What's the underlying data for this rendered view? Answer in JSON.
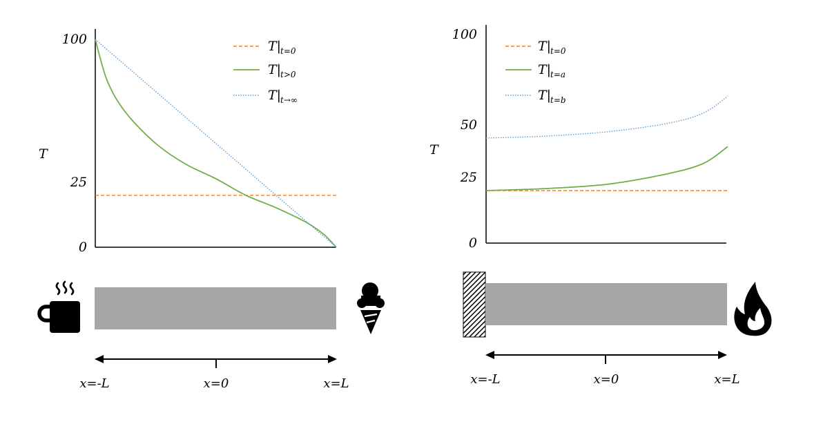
{
  "colors": {
    "initial": "#ED7D31",
    "intermediate": "#70AD47",
    "final": "#5B9BD5",
    "rod": "#A6A6A6",
    "ink": "#000000"
  },
  "left_panel": {
    "y_label": "T",
    "y_ticks": [
      "100",
      "25",
      "0"
    ],
    "legend": [
      {
        "main": "T|",
        "sub": "t=0",
        "style": "dashed",
        "color_key": "initial"
      },
      {
        "main": "T|",
        "sub": "t>0",
        "style": "solid",
        "color_key": "intermediate"
      },
      {
        "main": "T|",
        "sub": "t→∞",
        "style": "dotted",
        "color_key": "final"
      }
    ],
    "left_icon": "hot-coffee-mug-icon",
    "right_icon": "ice-cream-cone-icon",
    "positions": [
      "x=-L",
      "x=0",
      "x=L"
    ]
  },
  "right_panel": {
    "y_label": "T",
    "y_ticks": [
      "100",
      "50",
      "25",
      "0"
    ],
    "legend": [
      {
        "main": "T|",
        "sub": "t=0",
        "style": "dashed",
        "color_key": "initial"
      },
      {
        "main": "T|",
        "sub": "t=a",
        "style": "solid",
        "color_key": "intermediate"
      },
      {
        "main": "T|",
        "sub": "t=b",
        "style": "dotted",
        "color_key": "final"
      }
    ],
    "left_icon": "insulated-wall-icon",
    "right_icon": "fire-icon",
    "positions": [
      "x=-L",
      "x=0",
      "x=L"
    ]
  },
  "chart_data": [
    {
      "type": "line",
      "title": "",
      "xlabel": "",
      "ylabel": "T",
      "x_categories": [
        "x=-L",
        "x=0",
        "x=L"
      ],
      "xlim": [
        -1,
        1
      ],
      "ylim": [
        0,
        100
      ],
      "grid": false,
      "legend_position": "top-right",
      "series": [
        {
          "name": "T|t=0",
          "x": [
            -1,
            1
          ],
          "y": [
            25,
            25
          ]
        },
        {
          "name": "T|t>0",
          "x": [
            -1,
            -0.9,
            -0.75,
            -0.5,
            -0.25,
            0,
            0.25,
            0.5,
            0.75,
            0.9,
            1
          ],
          "y": [
            100,
            80,
            65,
            50,
            40,
            33,
            25,
            19,
            12,
            6,
            0
          ]
        },
        {
          "name": "T|t→∞",
          "x": [
            -1,
            1
          ],
          "y": [
            100,
            0
          ]
        }
      ]
    },
    {
      "type": "line",
      "title": "",
      "xlabel": "",
      "ylabel": "T",
      "x_categories": [
        "x=-L",
        "x=0",
        "x=L"
      ],
      "xlim": [
        -1,
        1
      ],
      "ylim": [
        0,
        100
      ],
      "grid": false,
      "legend_position": "top-left",
      "series": [
        {
          "name": "T|t=0",
          "x": [
            -1,
            1
          ],
          "y": [
            25,
            25
          ]
        },
        {
          "name": "T|t=a",
          "x": [
            -1,
            -0.5,
            0,
            0.5,
            0.8,
            1
          ],
          "y": [
            25,
            26,
            28,
            33,
            38,
            46
          ]
        },
        {
          "name": "T|t=b",
          "x": [
            -1,
            -0.5,
            0,
            0.5,
            0.8,
            1
          ],
          "y": [
            50,
            51,
            53,
            57,
            62,
            70
          ]
        }
      ]
    }
  ]
}
